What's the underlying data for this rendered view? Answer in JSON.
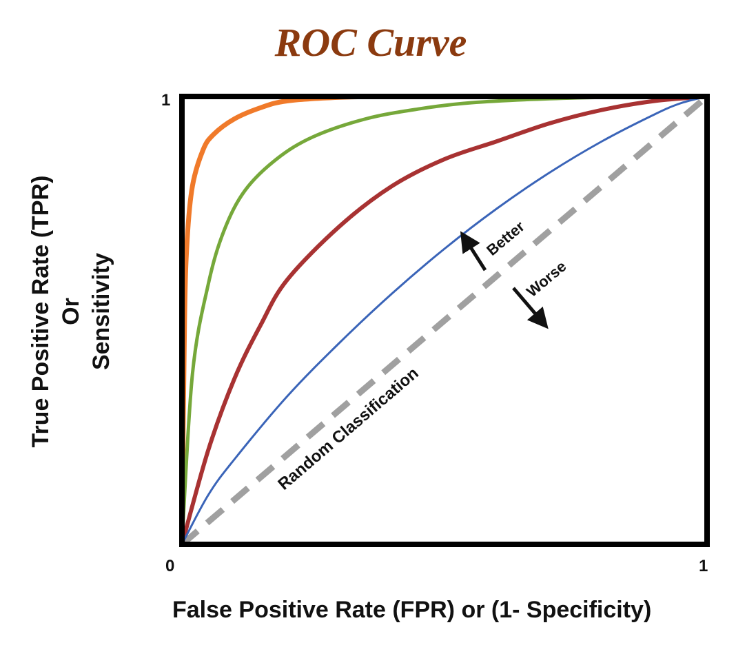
{
  "chart_data": {
    "type": "line",
    "title": "ROC Curve",
    "xlabel": "False Positive Rate (FPR) or (1- Specificity)",
    "ylabel_lines": [
      "True Positive Rate (TPR)",
      "Or",
      "Sensitivity"
    ],
    "xlim": [
      0,
      1
    ],
    "ylim": [
      0,
      1
    ],
    "x_ticks": [
      "0",
      "1"
    ],
    "y_ticks": [
      "1"
    ],
    "grid": false,
    "series": [
      {
        "color": "#f07a2a",
        "x": [
          0,
          0.005,
          0.01,
          0.02,
          0.04,
          0.06,
          0.1,
          0.15,
          0.2,
          0.3,
          0.4,
          0.6,
          0.8,
          1
        ],
        "y": [
          0,
          0.5,
          0.68,
          0.8,
          0.88,
          0.915,
          0.95,
          0.975,
          0.99,
          0.998,
          1,
          1,
          1,
          1
        ]
      },
      {
        "color": "#76a83a",
        "x": [
          0,
          0.02,
          0.05,
          0.08,
          0.12,
          0.18,
          0.25,
          0.35,
          0.45,
          0.55,
          0.7,
          0.85,
          1
        ],
        "y": [
          0,
          0.38,
          0.58,
          0.7,
          0.79,
          0.86,
          0.91,
          0.95,
          0.972,
          0.986,
          0.995,
          0.999,
          1
        ]
      },
      {
        "color": "#a83232",
        "x": [
          0,
          0.05,
          0.1,
          0.15,
          0.2,
          0.3,
          0.4,
          0.5,
          0.6,
          0.7,
          0.8,
          0.9,
          1
        ],
        "y": [
          0,
          0.21,
          0.37,
          0.49,
          0.59,
          0.71,
          0.8,
          0.86,
          0.9,
          0.94,
          0.97,
          0.99,
          1
        ]
      },
      {
        "color": "#3a64b8",
        "x": [
          0,
          0.05,
          0.1,
          0.2,
          0.3,
          0.4,
          0.5,
          0.6,
          0.7,
          0.8,
          0.9,
          0.95,
          1
        ],
        "y": [
          0,
          0.11,
          0.19,
          0.33,
          0.45,
          0.56,
          0.66,
          0.75,
          0.83,
          0.9,
          0.96,
          0.985,
          1
        ]
      }
    ],
    "random_line": {
      "label": "Random Classification",
      "color": "#a0a0a0",
      "x": [
        0,
        1
      ],
      "y": [
        0,
        1
      ]
    },
    "annotations": {
      "better": "Better",
      "worse": "Worse"
    }
  }
}
